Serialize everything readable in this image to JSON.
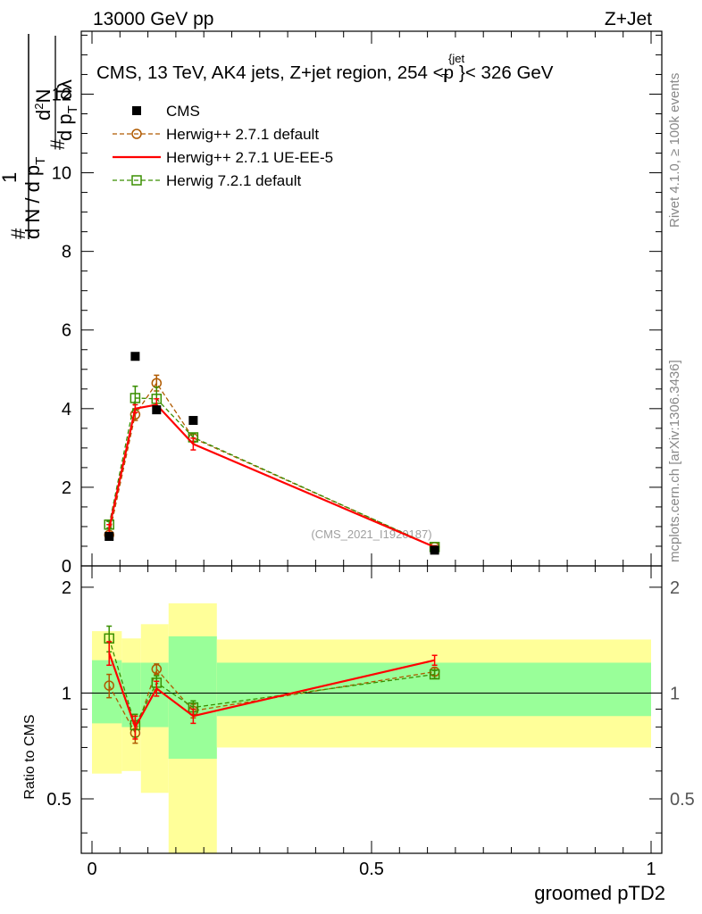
{
  "header": {
    "left": "13000 GeV pp",
    "right": "Z+Jet"
  },
  "side_labels": {
    "rivet": "Rivet 4.1.0, ≥ 100k events",
    "mcplots": "mcplots.cern.ch [arXiv:1306.3436]"
  },
  "ylabel_main": {
    "num_hash": "#",
    "den_main": "d N / d p",
    "den_sub": "T",
    "frac_one": "1",
    "frac_hash": "#",
    "d2N": "d",
    "d2N_sup": "2",
    "d2N_tail": "N",
    "dpT_main": "d p",
    "dpT_sub": "T",
    "dlambda": "dλ"
  },
  "title": {
    "main": "CMS, 13 TeV, AK4 jets, Z+jet region, 254 <p",
    "sup": "{jet",
    "sub": "T",
    "tail": "}< 326 GeV"
  },
  "watermark": "(CMS_2021_I1920187)",
  "ylabel_ratio": "Ratio to CMS",
  "xlabel": "groomed pTD2",
  "chart_data": {
    "type": "scatter",
    "xlim": [
      0,
      1
    ],
    "main_ylim": [
      0,
      13.6
    ],
    "ratio_ylim": [
      0.35,
      2.3
    ],
    "main_yticks": [
      "0",
      "2",
      "4",
      "6",
      "8",
      "10",
      "12"
    ],
    "main_ytick_values": [
      0,
      2,
      4,
      6,
      8,
      10,
      12
    ],
    "ratio_yticks": [
      "0.5",
      "1",
      "2"
    ],
    "ratio_ytick_values": [
      0.5,
      1,
      2
    ],
    "xticks": [
      "0",
      "0.5",
      "1"
    ],
    "xtick_values": [
      0,
      0.5,
      1
    ],
    "bin_edges": [
      0,
      0.0533,
      0.0875,
      0.137,
      0.2233,
      1.0
    ],
    "band_inner": [
      [
        0.82,
        1.24
      ],
      [
        0.8,
        1.22
      ],
      [
        0.8,
        1.22
      ],
      [
        0.65,
        1.45
      ],
      [
        0.86,
        1.22
      ]
    ],
    "band_outer": [
      [
        0.59,
        1.5
      ],
      [
        0.6,
        1.43
      ],
      [
        0.52,
        1.57
      ],
      [
        0.33,
        1.8
      ],
      [
        0.7,
        1.42
      ]
    ],
    "legend": [
      "CMS",
      "Herwig++ 2.7.1 default",
      "Herwig++ 2.7.1 UE-EE-5",
      "Herwig 7.2.1 default"
    ],
    "series": [
      {
        "name": "CMS",
        "color": "#000000",
        "marker": "square-filled",
        "x": [
          0.0307,
          0.0773,
          0.1155,
          0.1811,
          0.6128
        ],
        "y": [
          0.75,
          5.33,
          3.97,
          3.7,
          0.4
        ]
      },
      {
        "name": "Herwig++ 2.7.1 default",
        "color": "#b05a00",
        "marker": "circle-open",
        "dashed": true,
        "x": [
          0.0307,
          0.0773,
          0.1155,
          0.1811,
          0.6128
        ],
        "y": [
          0.79,
          3.85,
          4.65,
          3.25,
          0.48
        ],
        "err": [
          0.05,
          0.15,
          0.2,
          0.1,
          0.03
        ],
        "ratio": [
          1.05,
          0.77,
          1.17,
          0.89,
          1.15
        ],
        "ratio_err": [
          0.08,
          0.05,
          0.04,
          0.04,
          0.03
        ]
      },
      {
        "name": "Herwig++ 2.7.1 UE-EE-5",
        "color": "#ff0000",
        "marker": "none",
        "dashed": false,
        "x": [
          0.0307,
          0.0773,
          0.1155,
          0.1811,
          0.6128
        ],
        "y": [
          0.95,
          4.0,
          4.1,
          3.1,
          0.48
        ],
        "err": [
          0.1,
          0.1,
          0.15,
          0.15,
          0.03
        ],
        "ratio": [
          1.3,
          0.8,
          1.03,
          0.86,
          1.24
        ],
        "ratio_err": [
          0.1,
          0.06,
          0.05,
          0.04,
          0.04
        ]
      },
      {
        "name": "Herwig 7.2.1 default",
        "color": "#3a8f00",
        "marker": "square-open",
        "dashed": true,
        "x": [
          0.0307,
          0.0773,
          0.1155,
          0.1811,
          0.6128
        ],
        "y": [
          1.05,
          4.27,
          4.25,
          3.27,
          0.48
        ],
        "err": [
          0.08,
          0.3,
          0.3,
          0.1,
          0.03
        ],
        "ratio": [
          1.43,
          0.81,
          1.07,
          0.91,
          1.13
        ],
        "ratio_err": [
          0.12,
          0.06,
          0.05,
          0.04,
          0.03
        ]
      }
    ]
  }
}
